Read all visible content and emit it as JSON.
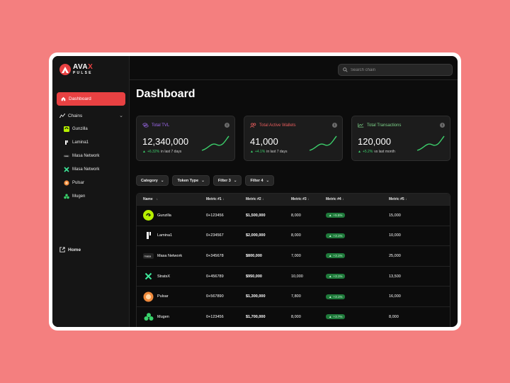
{
  "brand": {
    "name_part1": "AVA",
    "name_part2": "X",
    "subtitle": "PULSE",
    "accent": "#e84142"
  },
  "sidebar": {
    "dashboard_label": "Dashboard",
    "chains_label": "Chains",
    "chains": [
      "Gunzilla",
      "Lamina1",
      "Masa Network",
      "Masa Network",
      "Pulsar",
      "Mugen"
    ],
    "home_label": "Home"
  },
  "search": {
    "placeholder": "Search chain"
  },
  "page": {
    "title": "Dashboard"
  },
  "cards": [
    {
      "title": "Total TVL",
      "value": "12,340,000",
      "change": "+6.32%",
      "period": "in last 7 days",
      "title_color": "#a06af0"
    },
    {
      "title": "Total Active Wallets",
      "value": "41,000",
      "change": "+4.1%",
      "period": "in last 7 days",
      "title_color": "#e85d5d"
    },
    {
      "title": "Total Transactions",
      "value": "120,000",
      "change": "+5.2%",
      "period": "vs last month",
      "title_color": "#7ed48a"
    }
  ],
  "filters": [
    "Category",
    "Token Type",
    "Filter 3",
    "Filter 4"
  ],
  "table": {
    "headers": [
      "Name",
      "Metric #1",
      "Metric #2",
      "Metric #3",
      "Metric #4",
      "Metric #5"
    ],
    "rows": [
      {
        "name": "Gunzilla",
        "m1": "0+123456",
        "m2": "$1,500,000",
        "m3": "8,000",
        "m4": "+5.5%",
        "m5": "15,000"
      },
      {
        "name": "Lamina1",
        "m1": "0+234567",
        "m2": "$2,000,000",
        "m3": "8,000",
        "m4": "+3.1%",
        "m5": "10,000"
      },
      {
        "name": "Masa Network",
        "m1": "0+345678",
        "m2": "$800,000",
        "m3": "7,000",
        "m4": "+3.1%",
        "m5": "25,000"
      },
      {
        "name": "StratsX",
        "m1": "0+456789",
        "m2": "$950,000",
        "m3": "10,000",
        "m4": "+3.1%",
        "m5": "13,500"
      },
      {
        "name": "Pulsar",
        "m1": "0+567890",
        "m2": "$1,300,000",
        "m3": "7,800",
        "m4": "+3.1%",
        "m5": "16,000"
      },
      {
        "name": "Mugen",
        "m1": "0+123456",
        "m2": "$1,700,000",
        "m3": "8,000",
        "m4": "+3.7%",
        "m5": "8,000"
      }
    ]
  }
}
